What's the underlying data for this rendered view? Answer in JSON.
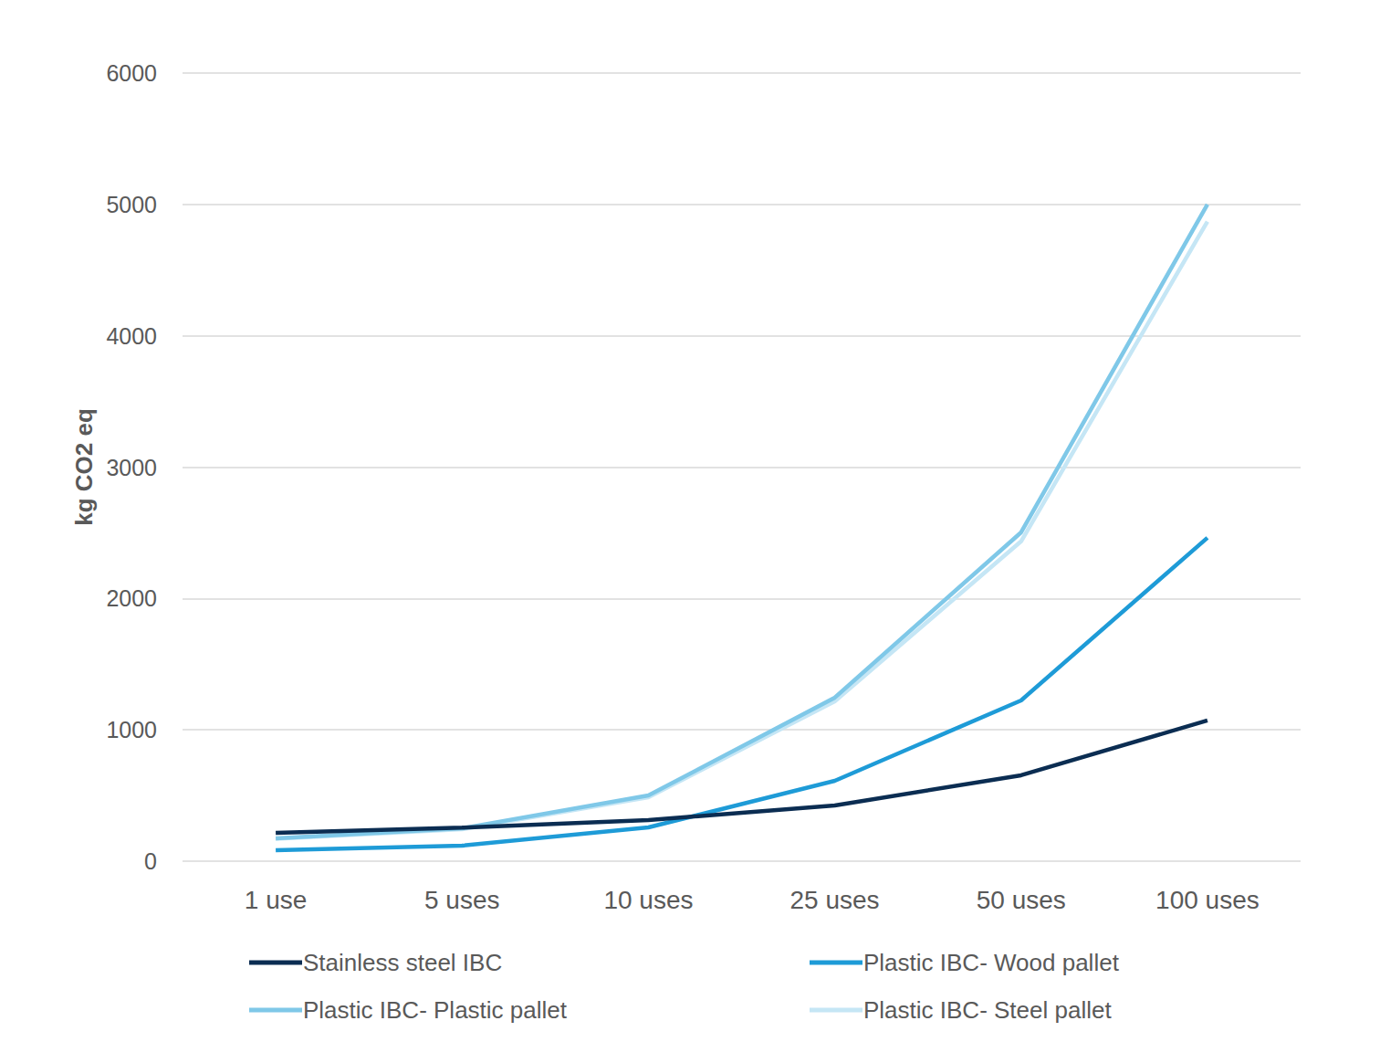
{
  "chart_data": {
    "type": "line",
    "y_label": "kg CO2 eq",
    "categories": [
      "1 use",
      "5 uses",
      "10 uses",
      "25 uses",
      "50 uses",
      "100 uses"
    ],
    "series": [
      {
        "name": "Stainless steel IBC",
        "color": "#0b2d52",
        "values": [
          215,
          255,
          313,
          424,
          654,
          1071
        ]
      },
      {
        "name": "Plastic IBC- Wood pallet",
        "color": "#1e9bd7",
        "values": [
          83,
          118,
          257,
          612,
          1224,
          2462
        ]
      },
      {
        "name": "Plastic IBC- Plastic pallet",
        "color": "#7fc8e8",
        "values": [
          174,
          250,
          500,
          1245,
          2503,
          5000
        ]
      },
      {
        "name": "Plastic IBC- Steel pallet",
        "color": "#c5e6f5",
        "values": [
          170,
          243,
          487,
          1217,
          2435,
          4870
        ]
      }
    ],
    "ylim": [
      0,
      6000
    ],
    "yticks": [
      0,
      1000,
      2000,
      3000,
      4000,
      5000,
      6000
    ],
    "grid": true,
    "legend": "bottom"
  }
}
